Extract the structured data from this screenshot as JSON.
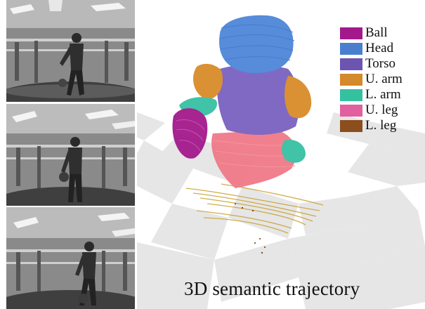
{
  "frames": [
    {
      "name": "frame-1"
    },
    {
      "name": "frame-2"
    },
    {
      "name": "frame-3"
    }
  ],
  "legend": {
    "items": [
      {
        "label": "Ball",
        "color": "#a3198c"
      },
      {
        "label": "Head",
        "color": "#4a7fd0"
      },
      {
        "label": "Torso",
        "color": "#6b55b0"
      },
      {
        "label": "U. arm",
        "color": "#d4892a"
      },
      {
        "label": "L. arm",
        "color": "#34c1a0"
      },
      {
        "label": "U. leg",
        "color": "#e060a0"
      },
      {
        "label": "L. leg",
        "color": "#8b4e1c"
      }
    ]
  },
  "caption": "3D semantic trajectory"
}
